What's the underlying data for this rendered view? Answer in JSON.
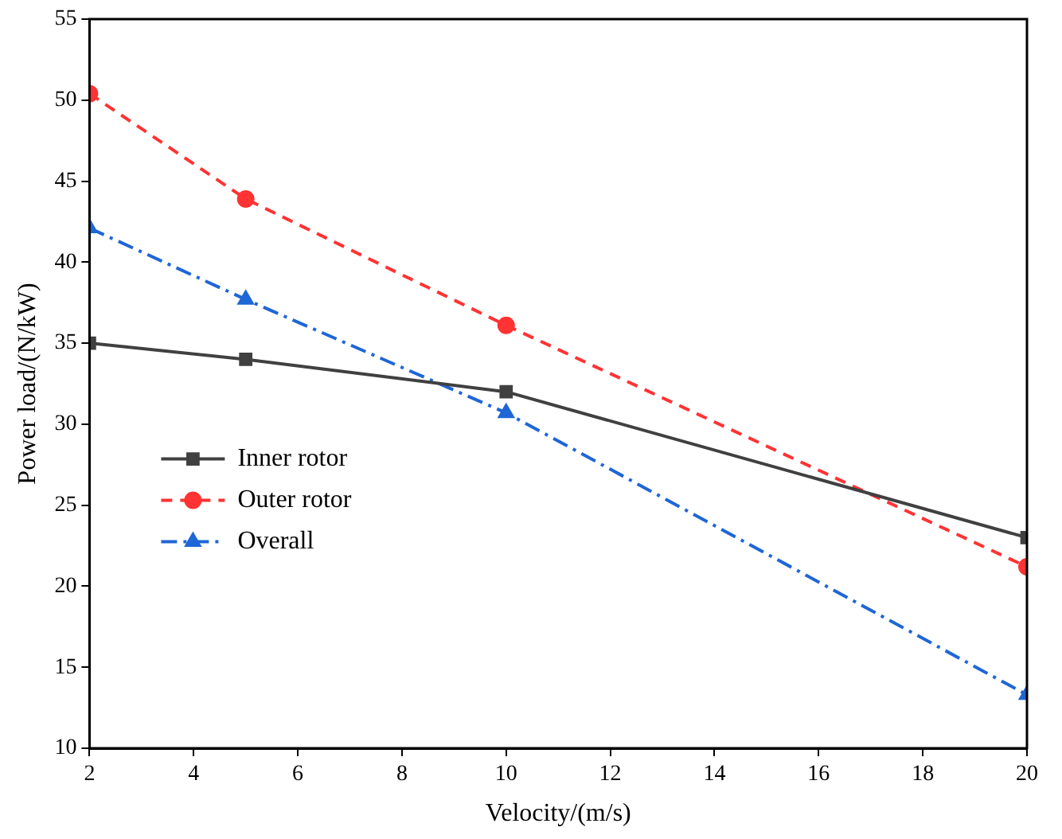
{
  "chart_data": {
    "type": "line",
    "xlabel": "Velocity/(m/s)",
    "ylabel": "Power load/(N/kW)",
    "x": [
      2,
      5,
      10,
      20
    ],
    "series": [
      {
        "name": "Inner rotor",
        "color": "#404040",
        "values": [
          35,
          34,
          32,
          23
        ],
        "marker": "square",
        "line_style": "solid"
      },
      {
        "name": "Outer rotor",
        "color": "#ff3333",
        "values": [
          50.4,
          43.9,
          36.1,
          21.2
        ],
        "marker": "circle",
        "line_style": "dashed"
      },
      {
        "name": "Overall",
        "color": "#1f66d6",
        "values": [
          42.1,
          37.7,
          30.7,
          13.3
        ],
        "marker": "triangle",
        "line_style": "dashdot"
      }
    ],
    "xlim": [
      2,
      20
    ],
    "xticks": [
      2,
      4,
      6,
      8,
      10,
      12,
      14,
      16,
      18,
      20
    ],
    "ylim": [
      10,
      55
    ],
    "yticks": [
      10,
      15,
      20,
      25,
      30,
      35,
      40,
      45,
      50,
      55
    ],
    "grid": false,
    "legend": "left"
  }
}
